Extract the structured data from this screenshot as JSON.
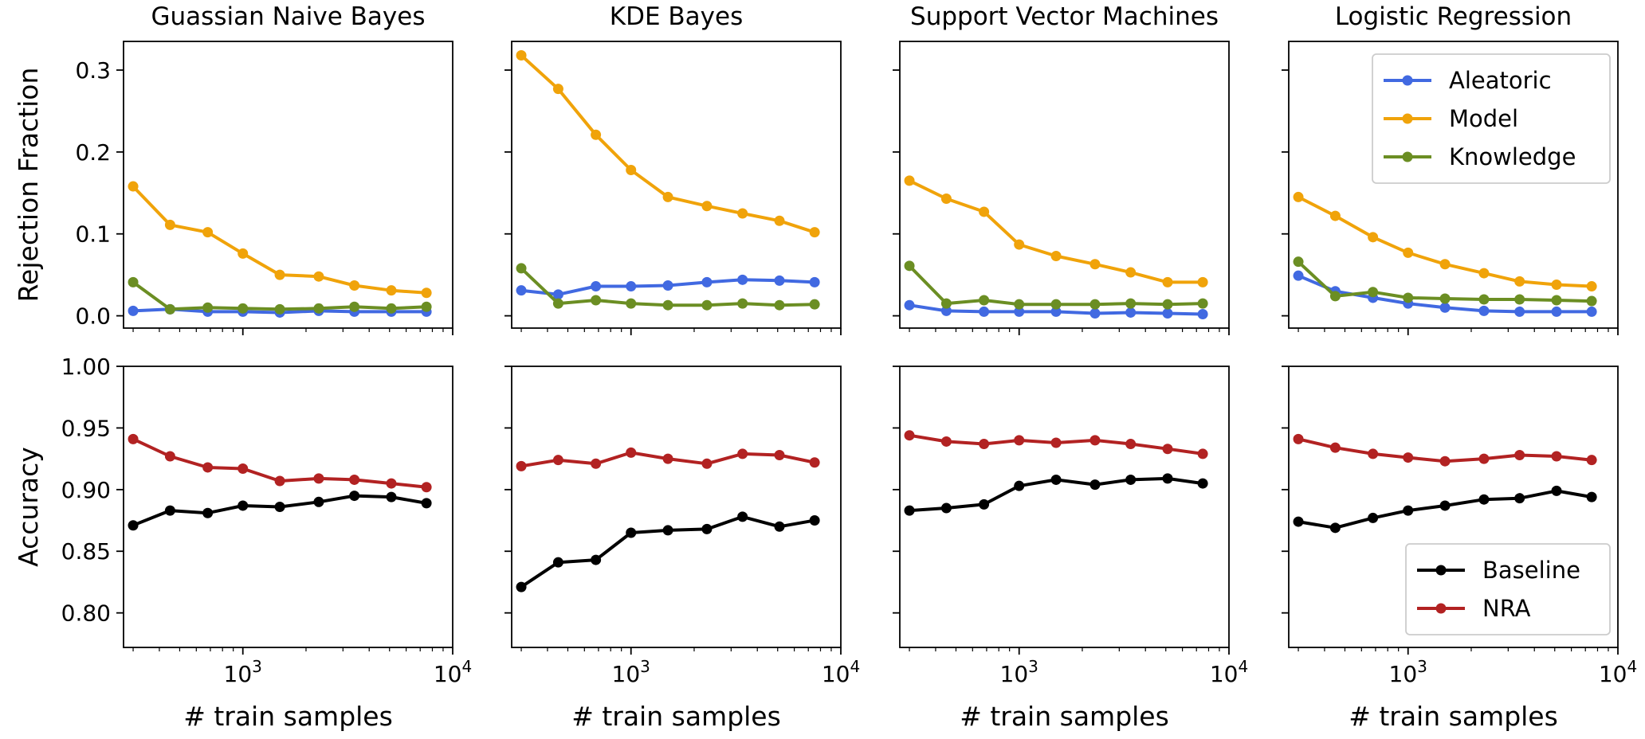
{
  "chart_data": {
    "type": "line",
    "x": [
      300,
      450,
      680,
      1000,
      1500,
      2300,
      3400,
      5100,
      7500
    ],
    "xscale": "log",
    "xlim": [
      270,
      10000
    ],
    "xticks": [
      {
        "value": 1000,
        "base": "10",
        "exp": "3"
      },
      {
        "value": 10000,
        "base": "10",
        "exp": "4"
      }
    ],
    "xlabel": "# train samples",
    "titles": [
      "Guassian Naive Bayes",
      "KDE Bayes",
      "Support Vector Machines",
      "Logistic Regression"
    ],
    "rows": [
      {
        "ylabel": "Rejection Fraction",
        "ylim": [
          -0.015,
          0.335
        ],
        "yticks": [
          0.0,
          0.1,
          0.2,
          0.3
        ],
        "yticklabels": [
          "0.0",
          "0.1",
          "0.2",
          "0.3"
        ],
        "legend": {
          "panel": 3,
          "position": "upper right"
        },
        "series_names": [
          "Aleatoric",
          "Model",
          "Knowledge"
        ],
        "colors": [
          "#4169e1",
          "#f0a30a",
          "#6b8e23"
        ],
        "panels": [
          [
            [
              0.006,
              0.008,
              0.005,
              0.005,
              0.004,
              0.006,
              0.005,
              0.005,
              0.005
            ],
            [
              0.158,
              0.111,
              0.102,
              0.076,
              0.05,
              0.048,
              0.037,
              0.031,
              0.028
            ],
            [
              0.041,
              0.008,
              0.01,
              0.009,
              0.008,
              0.009,
              0.011,
              0.009,
              0.011
            ]
          ],
          [
            [
              0.031,
              0.026,
              0.036,
              0.036,
              0.037,
              0.041,
              0.044,
              0.043,
              0.041
            ],
            [
              0.318,
              0.277,
              0.221,
              0.178,
              0.145,
              0.134,
              0.125,
              0.116,
              0.102
            ],
            [
              0.058,
              0.015,
              0.019,
              0.015,
              0.013,
              0.013,
              0.015,
              0.013,
              0.014
            ]
          ],
          [
            [
              0.013,
              0.006,
              0.005,
              0.005,
              0.005,
              0.003,
              0.004,
              0.003,
              0.002
            ],
            [
              0.165,
              0.143,
              0.127,
              0.087,
              0.073,
              0.063,
              0.053,
              0.041,
              0.041
            ],
            [
              0.061,
              0.015,
              0.019,
              0.014,
              0.014,
              0.014,
              0.015,
              0.014,
              0.015
            ]
          ],
          [
            [
              0.049,
              0.03,
              0.022,
              0.015,
              0.01,
              0.006,
              0.005,
              0.005,
              0.005
            ],
            [
              0.145,
              0.122,
              0.096,
              0.077,
              0.063,
              0.052,
              0.042,
              0.038,
              0.036
            ],
            [
              0.066,
              0.024,
              0.029,
              0.022,
              0.021,
              0.02,
              0.02,
              0.019,
              0.018
            ]
          ]
        ]
      },
      {
        "ylabel": "Accuracy",
        "ylim": [
          0.772,
          1.0
        ],
        "yticks": [
          0.8,
          0.85,
          0.9,
          0.95,
          1.0
        ],
        "yticklabels": [
          "0.80",
          "0.85",
          "0.90",
          "0.95",
          "1.00"
        ],
        "legend": {
          "panel": 3,
          "position": "lower right"
        },
        "series_names": [
          "Baseline",
          "NRA"
        ],
        "colors": [
          "#000000",
          "#b22222"
        ],
        "panels": [
          [
            [
              0.871,
              0.883,
              0.881,
              0.887,
              0.886,
              0.89,
              0.895,
              0.894,
              0.889
            ],
            [
              0.941,
              0.927,
              0.918,
              0.917,
              0.907,
              0.909,
              0.908,
              0.905,
              0.902
            ]
          ],
          [
            [
              0.821,
              0.841,
              0.843,
              0.865,
              0.867,
              0.868,
              0.878,
              0.87,
              0.875
            ],
            [
              0.919,
              0.924,
              0.921,
              0.93,
              0.925,
              0.921,
              0.929,
              0.928,
              0.922
            ]
          ],
          [
            [
              0.883,
              0.885,
              0.888,
              0.903,
              0.908,
              0.904,
              0.908,
              0.909,
              0.905
            ],
            [
              0.944,
              0.939,
              0.937,
              0.94,
              0.938,
              0.94,
              0.937,
              0.933,
              0.929
            ]
          ],
          [
            [
              0.874,
              0.869,
              0.877,
              0.883,
              0.887,
              0.892,
              0.893,
              0.899,
              0.894
            ],
            [
              0.941,
              0.934,
              0.929,
              0.926,
              0.923,
              0.925,
              0.928,
              0.927,
              0.924
            ]
          ]
        ]
      }
    ]
  }
}
